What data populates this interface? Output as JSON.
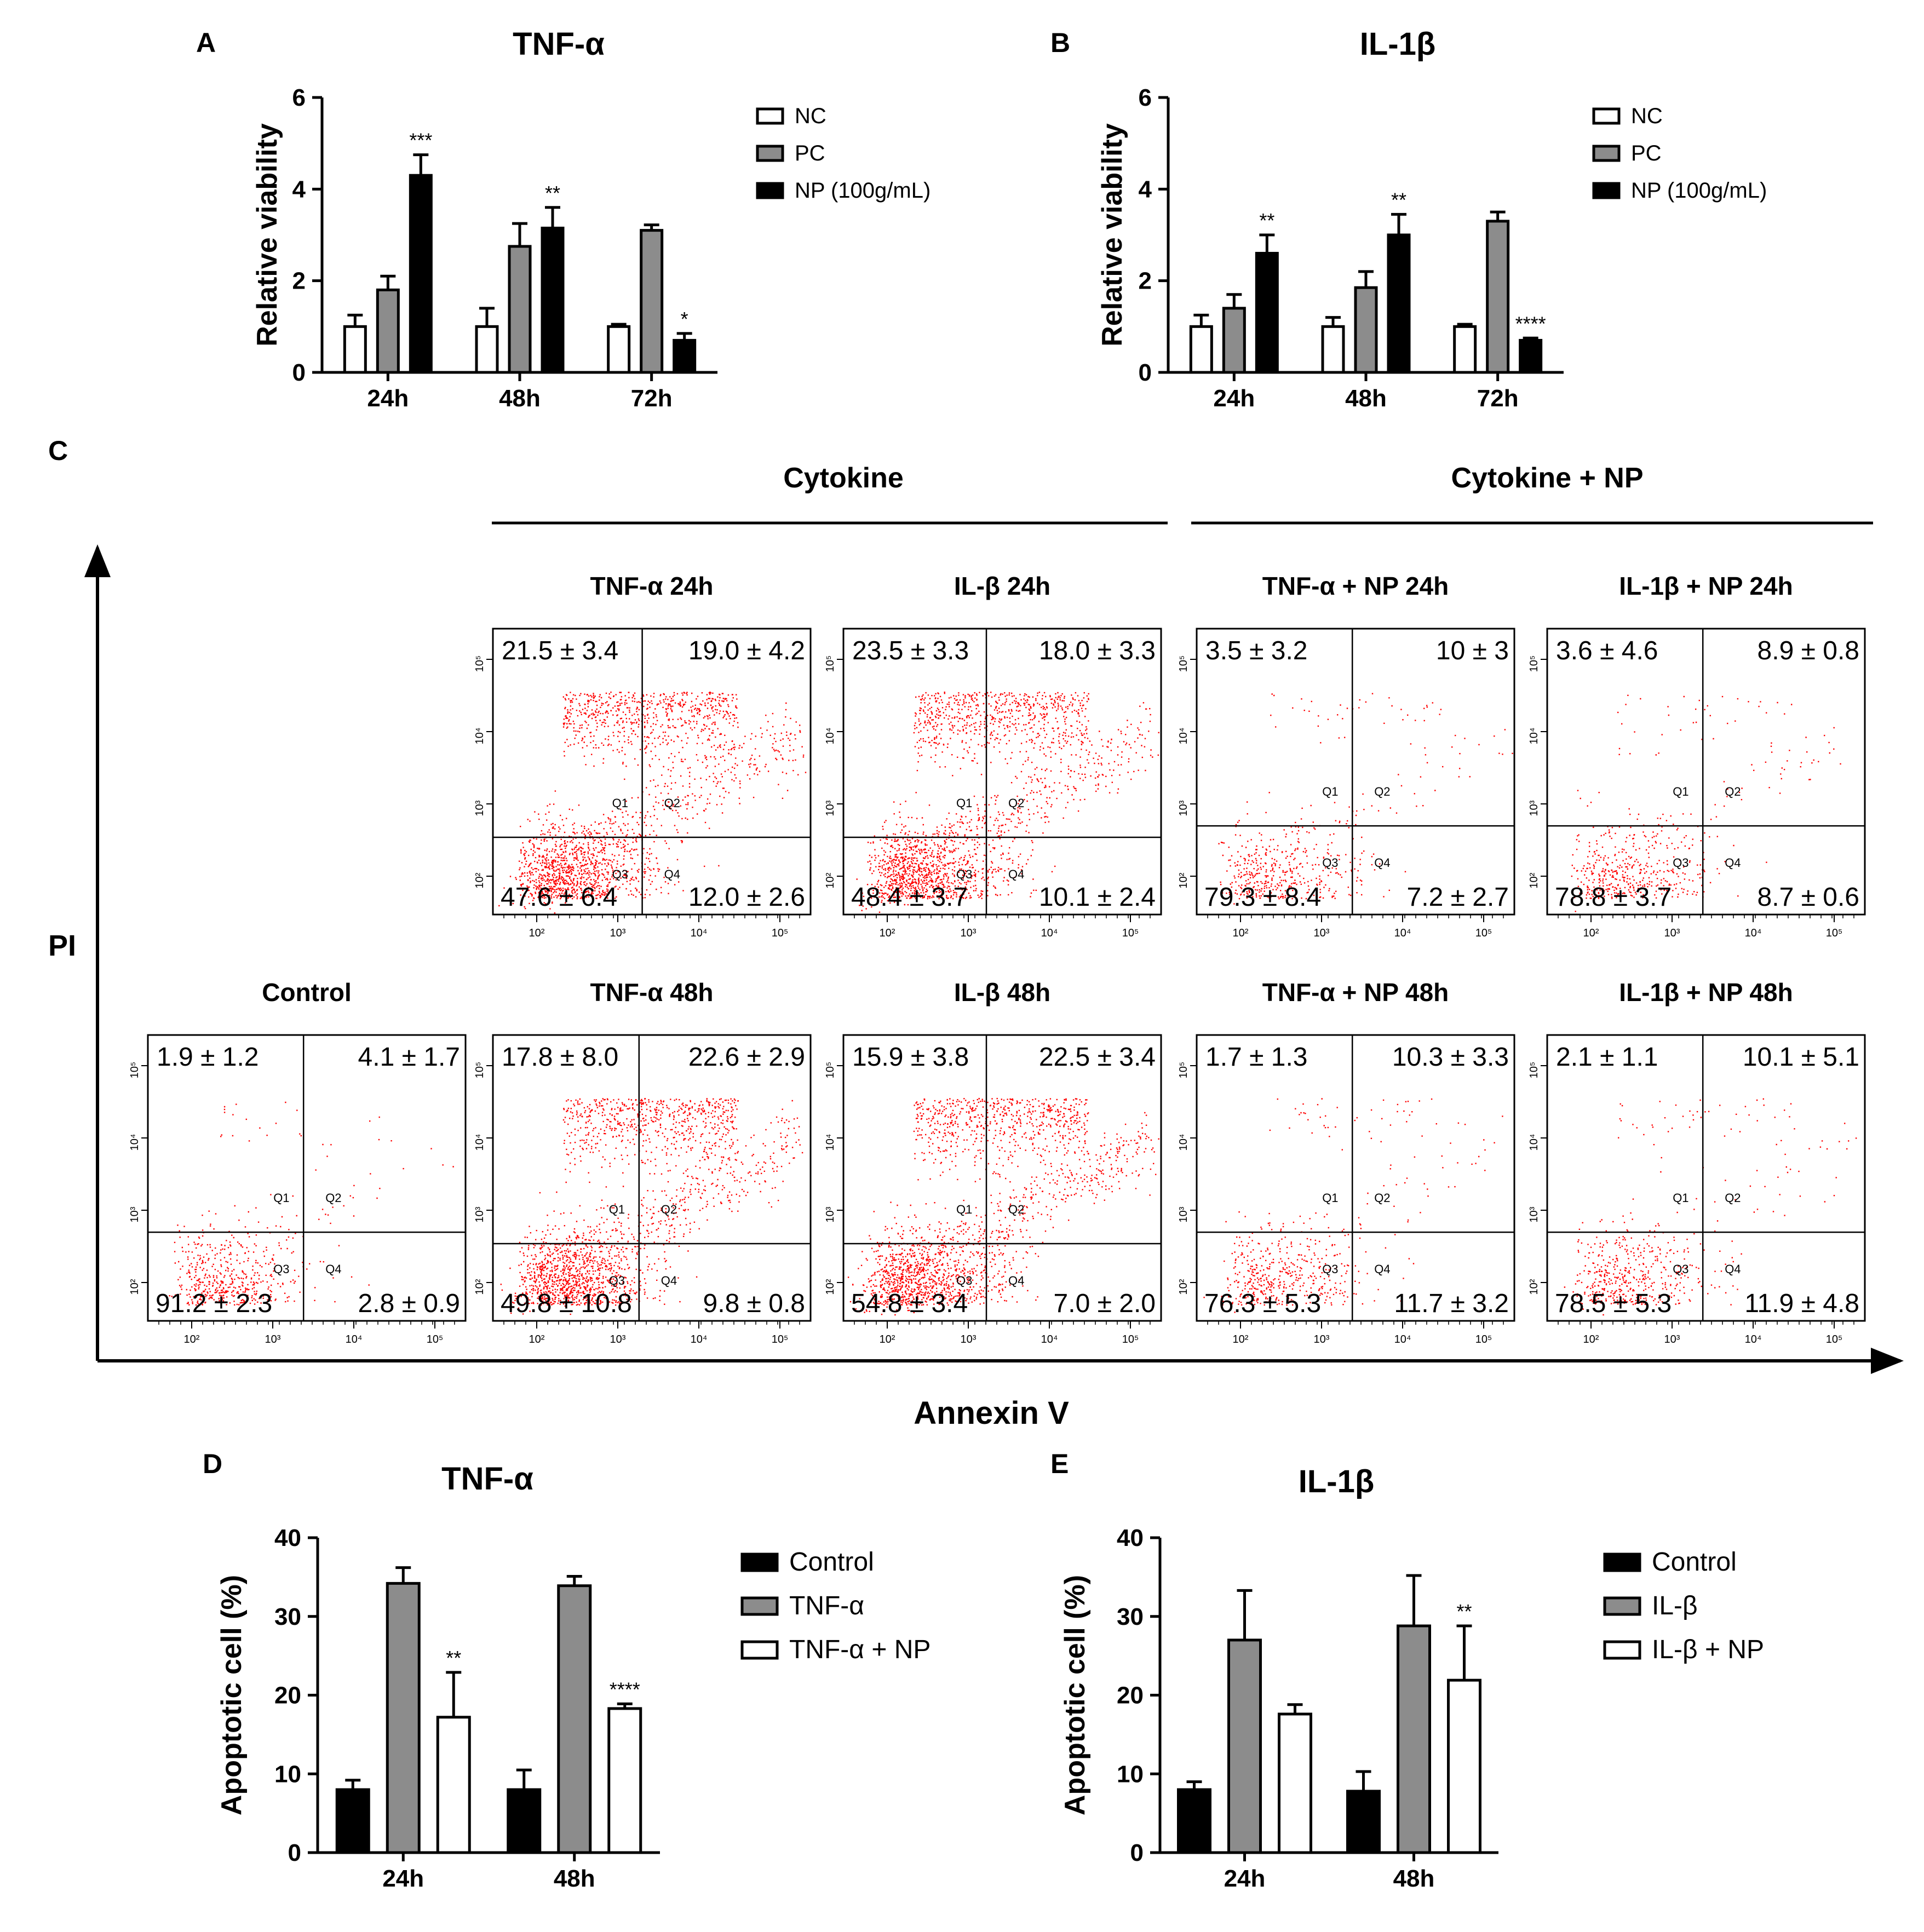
{
  "colors": {
    "nc": "#ffffff",
    "pc": "#8c8c8c",
    "np": "#000000",
    "dots": "#ff0000",
    "axis": "#000000"
  },
  "chart_data": [
    {
      "id": "A",
      "panel_label": "A",
      "type": "bar",
      "title": "TNF-α",
      "ylabel": "Relative viability",
      "ylim": [
        0,
        6
      ],
      "yticks": [
        "0",
        "2",
        "4",
        "6"
      ],
      "categories": [
        "24h",
        "48h",
        "72h"
      ],
      "series": [
        {
          "name": "NC",
          "color": "#ffffff",
          "values": [
            1.0,
            1.0,
            1.0
          ],
          "errors": [
            0.25,
            0.4,
            0.05
          ]
        },
        {
          "name": "PC",
          "color": "#8c8c8c",
          "values": [
            1.8,
            2.75,
            3.1
          ],
          "errors": [
            0.3,
            0.5,
            0.12
          ]
        },
        {
          "name": "NP (100g/mL)",
          "color": "#000000",
          "values": [
            4.3,
            3.15,
            0.7
          ],
          "errors": [
            0.45,
            0.45,
            0.15
          ]
        }
      ],
      "significance": [
        {
          "category": 0,
          "series": 2,
          "label": "***"
        },
        {
          "category": 1,
          "series": 2,
          "label": "**"
        },
        {
          "category": 2,
          "series": 2,
          "label": "*"
        }
      ]
    },
    {
      "id": "B",
      "panel_label": "B",
      "type": "bar",
      "title": "IL-1β",
      "ylabel": "Relative viability",
      "ylim": [
        0,
        6
      ],
      "yticks": [
        "0",
        "2",
        "4",
        "6"
      ],
      "categories": [
        "24h",
        "48h",
        "72h"
      ],
      "series": [
        {
          "name": "NC",
          "color": "#ffffff",
          "values": [
            1.0,
            1.0,
            1.0
          ],
          "errors": [
            0.25,
            0.2,
            0.05
          ]
        },
        {
          "name": "PC",
          "color": "#8c8c8c",
          "values": [
            1.4,
            1.85,
            3.3
          ],
          "errors": [
            0.3,
            0.35,
            0.2
          ]
        },
        {
          "name": "NP (100g/mL)",
          "color": "#000000",
          "values": [
            2.6,
            3.0,
            0.7
          ],
          "errors": [
            0.4,
            0.45,
            0.05
          ]
        }
      ],
      "significance": [
        {
          "category": 0,
          "series": 2,
          "label": "**"
        },
        {
          "category": 1,
          "series": 2,
          "label": "**"
        },
        {
          "category": 2,
          "series": 2,
          "label": "****"
        }
      ]
    },
    {
      "id": "C",
      "panel_label": "C",
      "type": "scatter",
      "xlabel": "Annexin V",
      "ylabel": "PI",
      "group_labels": [
        "Cytokine",
        "Cytokine + NP"
      ],
      "axis_tick_labels": [
        "10²",
        "10³",
        "10⁴",
        "10⁵"
      ],
      "quadrant_names": [
        "Q1",
        "Q2",
        "Q3",
        "Q4"
      ],
      "plots": [
        {
          "title": "TNF-α 24h",
          "quadrants": [
            "21.5 ± 3.4",
            "19.0 ± 4.2",
            "47.6 ± 6.4",
            "12.0 ± 2.6"
          ]
        },
        {
          "title": "IL-β 24h",
          "quadrants": [
            "23.5 ± 3.3",
            "18.0 ± 3.3",
            "48.4 ± 3.7",
            "10.1 ± 2.4"
          ]
        },
        {
          "title": "TNF-α + NP 24h",
          "quadrants": [
            "3.5 ± 3.2",
            "10 ± 3",
            "79.3 ± 8.4",
            "7.2 ± 2.7"
          ]
        },
        {
          "title": "IL-1β + NP 24h",
          "quadrants": [
            "3.6 ± 4.6",
            "8.9 ± 0.8",
            "78.8 ± 3.7",
            "8.7 ± 0.6"
          ]
        },
        {
          "title": "Control",
          "quadrants": [
            "1.9 ± 1.2",
            "4.1 ± 1.7",
            "91.2 ± 2.3",
            "2.8 ± 0.9"
          ]
        },
        {
          "title": "TNF-α 48h",
          "quadrants": [
            "17.8 ± 8.0",
            "22.6 ± 2.9",
            "49.8 ± 10.8",
            "9.8 ± 0.8"
          ]
        },
        {
          "title": "IL-β 48h",
          "quadrants": [
            "15.9 ± 3.8",
            "22.5 ± 3.4",
            "54.8 ± 3.4",
            "7.0 ± 2.0"
          ]
        },
        {
          "title": "TNF-α + NP 48h",
          "quadrants": [
            "1.7 ± 1.3",
            "10.3 ± 3.3",
            "76.3 ± 5.3",
            "11.7 ± 3.2"
          ]
        },
        {
          "title": "IL-1β + NP 48h",
          "quadrants": [
            "2.1 ± 1.1",
            "10.1 ± 5.1",
            "78.5 ± 5.3",
            "11.9 ± 4.8"
          ]
        }
      ]
    },
    {
      "id": "D",
      "panel_label": "D",
      "type": "bar",
      "title": "TNF-α",
      "ylabel": "Apoptotic cell (%)",
      "ylim": [
        0,
        40
      ],
      "yticks": [
        "0",
        "10",
        "20",
        "30",
        "40"
      ],
      "categories": [
        "24h",
        "48h"
      ],
      "series": [
        {
          "name": "Control",
          "color": "#000000",
          "values": [
            8.0,
            8.0
          ],
          "errors": [
            1.2,
            2.5
          ]
        },
        {
          "name": "TNF-α",
          "color": "#8c8c8c",
          "values": [
            34.2,
            33.9
          ],
          "errors": [
            2.0,
            1.2
          ]
        },
        {
          "name": "TNF-α + NP",
          "color": "#ffffff",
          "values": [
            17.2,
            18.3
          ],
          "errors": [
            5.7,
            0.6
          ]
        }
      ],
      "significance": [
        {
          "category": 0,
          "series": 2,
          "label": "**"
        },
        {
          "category": 1,
          "series": 2,
          "label": "****"
        }
      ]
    },
    {
      "id": "E",
      "panel_label": "E",
      "type": "bar",
      "title": "IL-1β",
      "ylabel": "Apoptotic cell (%)",
      "ylim": [
        0,
        40
      ],
      "yticks": [
        "0",
        "10",
        "20",
        "30",
        "40"
      ],
      "categories": [
        "24h",
        "48h"
      ],
      "series": [
        {
          "name": "Control",
          "color": "#000000",
          "values": [
            8.0,
            7.8
          ],
          "errors": [
            1.0,
            2.5
          ]
        },
        {
          "name": "IL-β",
          "color": "#8c8c8c",
          "values": [
            27.0,
            28.8
          ],
          "errors": [
            6.3,
            6.4
          ]
        },
        {
          "name": "IL-β + NP",
          "color": "#ffffff",
          "values": [
            17.6,
            21.9
          ],
          "errors": [
            1.2,
            6.9
          ]
        }
      ],
      "significance": [
        {
          "category": 1,
          "series": 2,
          "label": "**"
        }
      ]
    }
  ]
}
